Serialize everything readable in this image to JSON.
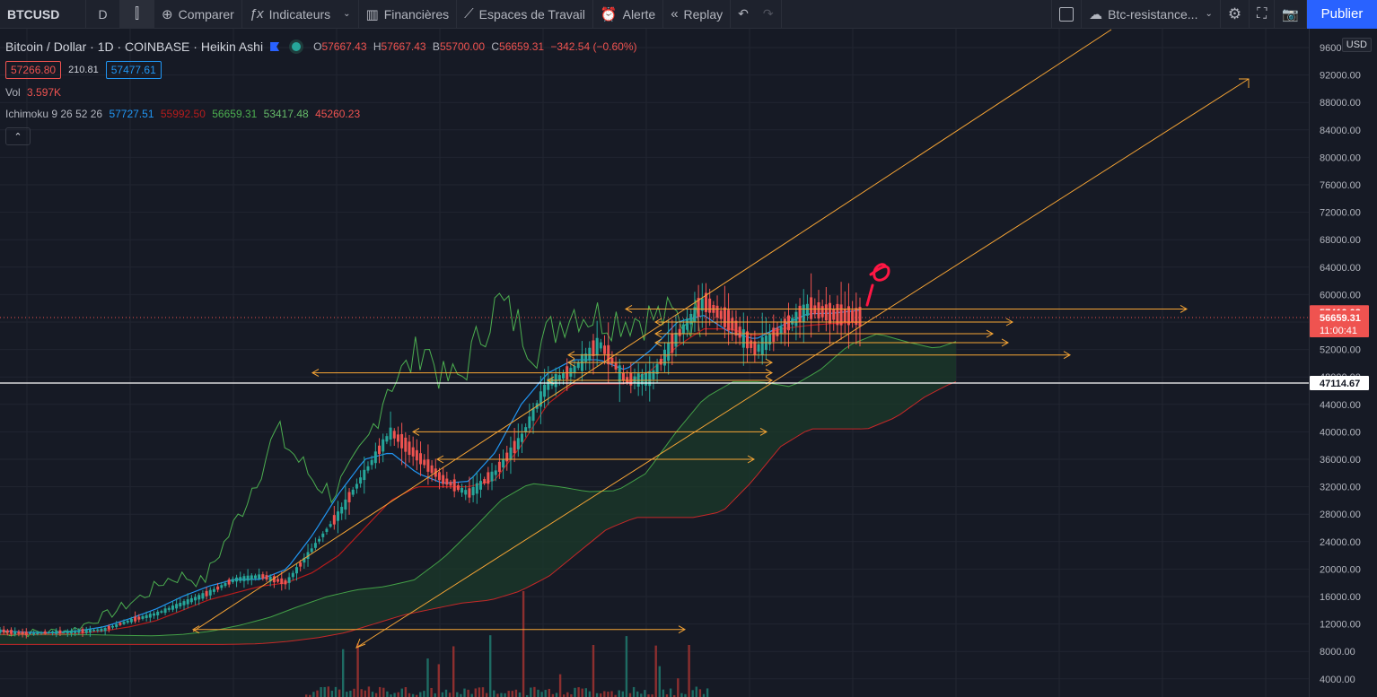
{
  "toolbar": {
    "symbol": "BTCUSD",
    "interval": "D",
    "compare": "Comparer",
    "indicators": "Indicateurs",
    "financials": "Financières",
    "workspaces": "Espaces de Travail",
    "alert": "Alerte",
    "replay": "Replay",
    "layout_name": "Btc-resistance...",
    "publish": "Publier"
  },
  "legend": {
    "title": "Bitcoin / Dollar · 1D · COINBASE · Heikin Ashi",
    "open_k": "O",
    "open": "57667.43",
    "high_k": "H",
    "high": "57667.43",
    "low_k": "B",
    "low": "55700.00",
    "close_k": "C",
    "close": "56659.31",
    "change": "−342.54 (−0.60%)",
    "bid": "57266.80",
    "spread": "210.81",
    "ask": "57477.61",
    "vol_label": "Vol",
    "vol_value": "3.597K",
    "ichimoku_label": "Ichimoku",
    "ichimoku_params": "9 26 52 26",
    "ichimoku_values": [
      "57727.51",
      "55992.50",
      "56659.31",
      "53417.48",
      "45260.23"
    ],
    "collapse": "⌃"
  },
  "axis": {
    "currency": "USD",
    "ticks": [
      "96000.00",
      "92000.00",
      "88000.00",
      "84000.00",
      "80000.00",
      "76000.00",
      "72000.00",
      "68000.00",
      "64000.00",
      "60000.00",
      "56000.00",
      "52000.00",
      "48000.00",
      "44000.00",
      "40000.00",
      "36000.00",
      "32000.00",
      "28000.00",
      "24000.00",
      "20000.00",
      "16000.00",
      "12000.00",
      "8000.00",
      "4000.00"
    ],
    "tick_values": [
      96000,
      92000,
      88000,
      84000,
      80000,
      76000,
      72000,
      68000,
      64000,
      60000,
      56000,
      52000,
      48000,
      44000,
      40000,
      36000,
      32000,
      28000,
      24000,
      20000,
      16000,
      12000,
      8000,
      4000
    ],
    "label_ask": "57410.03",
    "label_last": "56659.31",
    "label_countdown": "11:00:41",
    "label_line": "47114.67",
    "ask_value": 57410.03,
    "last_value": 56659.31,
    "line_value": 47114.67
  },
  "colors": {
    "background": "#161a25",
    "up": "#26a69a",
    "down": "#ef5350",
    "drawing": "#f7a535",
    "annotation": "#ff1744",
    "lagging_span": "#4caf50",
    "kijun": "#b71c1c",
    "tenkan": "#2196f3"
  },
  "chart_data": {
    "type": "line",
    "title": "Bitcoin / Dollar · 1D · COINBASE · Heikin Ashi",
    "xlabel": "",
    "ylabel": "",
    "ylim": [
      2000,
      98000
    ],
    "grid": true,
    "price_points": [
      11000,
      10600,
      10800,
      10900,
      11200,
      12500,
      13500,
      15000,
      16500,
      18500,
      19000,
      18000,
      23000,
      28000,
      34000,
      40000,
      36500,
      33000,
      31000,
      34000,
      39000,
      47000,
      49000,
      53000,
      47500,
      48000,
      54000,
      59000,
      56000,
      52000,
      55000,
      58000,
      57000,
      56659
    ],
    "series": [
      {
        "name": "Ichimoku Tenkan",
        "values": [
          11000,
          10800,
          10700,
          11000,
          11600,
          12800,
          14200,
          16000,
          17500,
          18500,
          18500,
          20000,
          25000,
          31000,
          36000,
          37000,
          34000,
          32500,
          32800,
          37000,
          44000,
          48500,
          50500,
          50500,
          49000,
          52000,
          56000,
          57000,
          54500,
          53500,
          55500,
          57200,
          57300,
          57728
        ]
      },
      {
        "name": "Ichimoku Kijun",
        "values": [
          10500,
          10500,
          10500,
          10600,
          11000,
          11600,
          12500,
          14000,
          15500,
          16500,
          17500,
          18000,
          19500,
          22000,
          26000,
          30000,
          32000,
          32000,
          32000,
          33000,
          38000,
          44000,
          47000,
          47000,
          47000,
          49000,
          52500,
          55000,
          55000,
          54000,
          55000,
          55500,
          55800,
          55993
        ]
      }
    ],
    "drawings": {
      "channel_upper": [
        [
          10800,
          97500
        ]
      ],
      "channel_lower": [
        [
          8500,
          92000
        ]
      ],
      "horizontal_levels": [
        57900,
        56000,
        54300,
        53000,
        51200,
        50100,
        48600,
        47500,
        40000,
        36000,
        11200
      ]
    }
  }
}
